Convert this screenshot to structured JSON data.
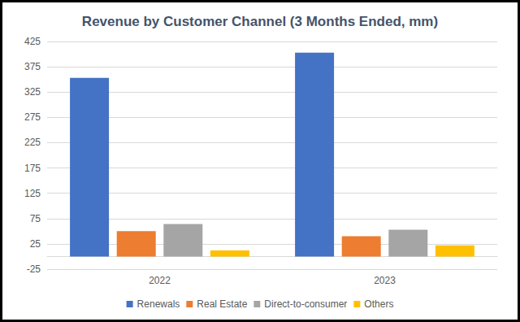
{
  "chart_data": {
    "type": "bar",
    "title": "Revenue by Customer Channel (3 Months Ended, mm)",
    "categories": [
      "2022",
      "2023"
    ],
    "series": [
      {
        "name": "Renewals",
        "color": "#4472c4",
        "values": [
          353,
          403
        ]
      },
      {
        "name": "Real Estate",
        "color": "#ed7d31",
        "values": [
          50,
          40
        ]
      },
      {
        "name": "Direct-to-consumer",
        "color": "#a5a5a5",
        "values": [
          64,
          53
        ]
      },
      {
        "name": "Others",
        "color": "#ffc000",
        "values": [
          12,
          22
        ]
      }
    ],
    "ylim": [
      -25,
      425
    ],
    "yticks": [
      -25,
      25,
      75,
      125,
      175,
      225,
      275,
      325,
      375,
      425
    ],
    "grid": true,
    "legend": "bottom"
  }
}
